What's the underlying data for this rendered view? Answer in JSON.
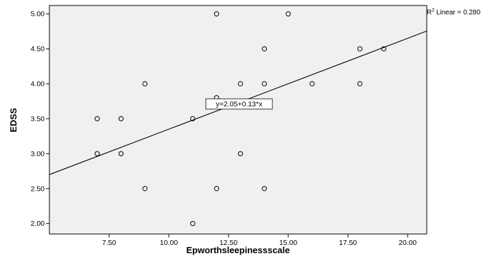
{
  "chart_data": {
    "type": "scatter",
    "xlabel": "Epworthsleepinessscale",
    "ylabel": "EDSS",
    "xlim": [
      5.0,
      20.8
    ],
    "ylim": [
      1.85,
      5.12
    ],
    "xticks": [
      7.5,
      10.0,
      12.5,
      15.0,
      17.5,
      20.0
    ],
    "xtick_labels": [
      "7.50",
      "10.00",
      "12.50",
      "15.00",
      "17.50",
      "20.00"
    ],
    "yticks": [
      2.0,
      2.5,
      3.0,
      3.5,
      4.0,
      4.5,
      5.0
    ],
    "ytick_labels": [
      "2.00",
      "2.50",
      "3.00",
      "3.50",
      "4.00",
      "4.50",
      "5.00"
    ],
    "points": [
      {
        "x": 7,
        "y": 3.5
      },
      {
        "x": 7,
        "y": 3.0
      },
      {
        "x": 8,
        "y": 3.5
      },
      {
        "x": 8,
        "y": 3.0
      },
      {
        "x": 9,
        "y": 4.0
      },
      {
        "x": 9,
        "y": 2.5
      },
      {
        "x": 11,
        "y": 3.5
      },
      {
        "x": 11,
        "y": 2.0
      },
      {
        "x": 12,
        "y": 5.0
      },
      {
        "x": 12,
        "y": 3.8
      },
      {
        "x": 12,
        "y": 2.5
      },
      {
        "x": 13,
        "y": 4.0
      },
      {
        "x": 13,
        "y": 3.0
      },
      {
        "x": 14,
        "y": 4.5
      },
      {
        "x": 14,
        "y": 4.0
      },
      {
        "x": 14,
        "y": 2.5
      },
      {
        "x": 15,
        "y": 5.0
      },
      {
        "x": 16,
        "y": 4.0
      },
      {
        "x": 18,
        "y": 4.5
      },
      {
        "x": 18,
        "y": 4.0
      },
      {
        "x": 19,
        "y": 4.5
      }
    ],
    "fit_line": {
      "intercept": 2.05,
      "slope": 0.13
    },
    "equation_label": "y=2.05+0.13*x",
    "r2_label": {
      "prefix": "R",
      "sup": "2",
      "text": " Linear = 0.280"
    },
    "grid": false
  }
}
